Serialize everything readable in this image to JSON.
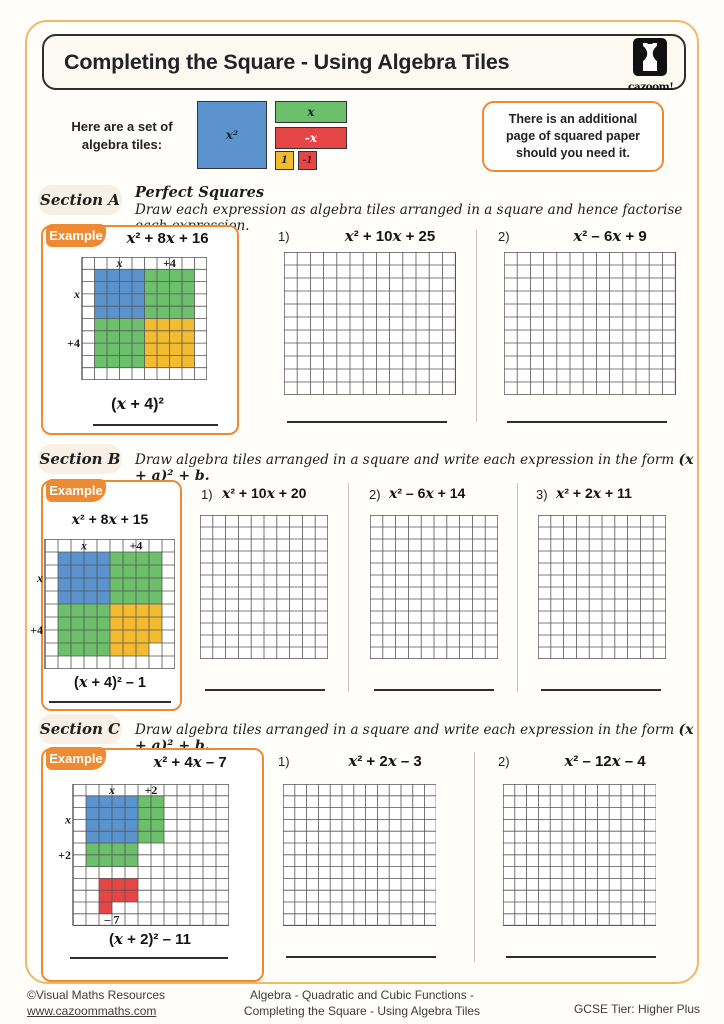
{
  "page": {
    "title": "Completing the Square - Using Algebra Tiles",
    "logo_text": "cazoom!"
  },
  "intro": {
    "lead_line1": "Here are a set of",
    "lead_line2": "algebra tiles:",
    "tile_x2": "x²",
    "tile_x": "x",
    "tile_neg_x": "-x",
    "tile_one": "1",
    "tile_neg_one": "-1",
    "note": "There is an additional page of squared paper should you need it."
  },
  "sections": {
    "a": {
      "name": "Section A",
      "subtitle": "Perfect Squares",
      "instruction": "Draw each expression as algebra tiles arranged in a square and hence factorise each expression.",
      "example": {
        "label": "Example",
        "expr": "x² + 8x + 16",
        "answer": "(x + 4)²"
      },
      "problems": [
        {
          "num": "1)",
          "expr": "x² + 10x + 25"
        },
        {
          "num": "2)",
          "expr": "x² – 6x + 9"
        }
      ]
    },
    "b": {
      "name": "Section B",
      "instruction": "Draw algebra tiles arranged in a square and write each expression in the form",
      "instruction_math": "(x + a)² + b.",
      "example": {
        "label": "Example",
        "expr": "x² + 8x + 15",
        "answer": "(x + 4)² – 1"
      },
      "problems": [
        {
          "num": "1)",
          "expr": "x² + 10x + 20"
        },
        {
          "num": "2)",
          "expr": "x² – 6x + 14"
        },
        {
          "num": "3)",
          "expr": "x² + 2x + 11"
        }
      ]
    },
    "c": {
      "name": "Section C",
      "instruction": "Draw algebra tiles arranged in a square and write each expression in the form",
      "instruction_math": "(x + a)² + b.",
      "example": {
        "label": "Example",
        "expr": "x² + 4x – 7",
        "answer": "(x + 2)² – 11"
      },
      "problems": [
        {
          "num": "1)",
          "expr": "x² + 2x – 3"
        },
        {
          "num": "2)",
          "expr": "x² – 12x – 4"
        }
      ]
    }
  },
  "palette": {
    "blue": "#5b93ce",
    "green": "#6cbf6b",
    "yellow": "#f3bb2f",
    "red": "#e64545",
    "orange": "#ee8a32",
    "grid": "#555555"
  },
  "grids": {
    "a_example": {
      "cols": 10,
      "rows": 10,
      "cw": 12.5,
      "ch": 12.3,
      "ml": 18,
      "tiles": [
        [
          "blue",
          1,
          1,
          4,
          4
        ],
        [
          "green",
          5,
          1,
          4,
          4
        ],
        [
          "green",
          1,
          5,
          4,
          4
        ],
        [
          "yellow",
          5,
          5,
          4,
          4
        ]
      ],
      "labels": [
        [
          "top",
          "x",
          1,
          4
        ],
        [
          "top",
          "+4",
          5,
          4
        ],
        [
          "left",
          "x",
          1,
          4
        ],
        [
          "left",
          "+4",
          5,
          4
        ]
      ]
    },
    "a_p": {
      "cols": 13,
      "rows": 11,
      "cw": 13.2,
      "ch": 13
    },
    "b_example": {
      "cols": 10,
      "rows": 10,
      "cw": 13,
      "ch": 13,
      "ml": 14,
      "tiles": [
        [
          "blue",
          1,
          1,
          4,
          4
        ],
        [
          "green",
          5,
          1,
          4,
          4
        ],
        [
          "green",
          1,
          5,
          4,
          4
        ],
        [
          "yellow",
          5,
          5,
          4,
          3
        ],
        [
          "yellow",
          5,
          8,
          3,
          1
        ]
      ],
      "labels": [
        [
          "top",
          "x",
          1,
          4
        ],
        [
          "top",
          "+4",
          5,
          4
        ],
        [
          "left",
          "x",
          1,
          4
        ],
        [
          "left",
          "+4",
          5,
          4
        ]
      ]
    },
    "b_p": {
      "cols": 10,
      "rows": 12,
      "cw": 12.8,
      "ch": 12
    },
    "c_example": {
      "cols": 12,
      "rows": 12,
      "cw": 13,
      "ch": 11.8,
      "ml": 18,
      "tiles": [
        [
          "blue",
          1,
          1,
          4,
          4
        ],
        [
          "green",
          5,
          1,
          2,
          4
        ],
        [
          "green",
          1,
          5,
          4,
          2
        ],
        [
          "red",
          2,
          8,
          3,
          2
        ],
        [
          "red",
          2,
          10,
          1,
          1
        ]
      ],
      "labels": [
        [
          "top",
          "x",
          1,
          4
        ],
        [
          "top",
          "+2",
          5,
          2
        ],
        [
          "left",
          "x",
          1,
          4
        ],
        [
          "left",
          "+2",
          5,
          2
        ],
        [
          "cell",
          "– 7",
          2,
          11,
          2
        ]
      ]
    },
    "c_p": {
      "cols": 13,
      "rows": 12,
      "cw": 11.8,
      "ch": 11.8
    }
  },
  "footer": {
    "copyright": "©Visual Maths Resources",
    "url": "www.cazoommaths.com",
    "center_line1": "Algebra - Quadratic and Cubic Functions -",
    "center_line2": "Completing the Square - Using Algebra Tiles",
    "tier": "GCSE Tier: Higher Plus"
  }
}
